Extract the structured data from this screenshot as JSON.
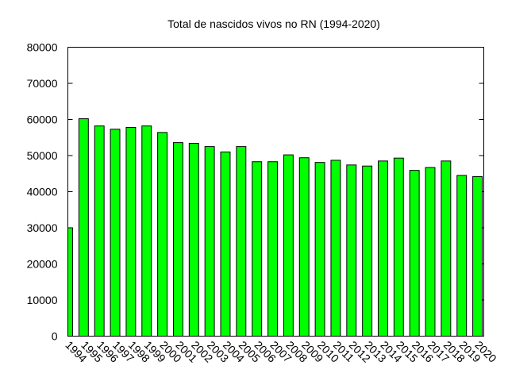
{
  "chart_data": {
    "type": "bar",
    "title": "Total de nascidos vivos no RN (1994-2020)",
    "xlabel": "",
    "ylabel": "",
    "ylim": [
      0,
      80000
    ],
    "yticks": [
      0,
      10000,
      20000,
      30000,
      40000,
      50000,
      60000,
      70000,
      80000
    ],
    "grid": false,
    "legend": "none",
    "bar_color": "#00ff00",
    "categories": [
      "1994",
      "1995",
      "1996",
      "1997",
      "1998",
      "1999",
      "2000",
      "2001",
      "2002",
      "2003",
      "2004",
      "2005",
      "2006",
      "2007",
      "2008",
      "2009",
      "2010",
      "2011",
      "2012",
      "2013",
      "2014",
      "2015",
      "2016",
      "2017",
      "2018",
      "2019",
      "2020"
    ],
    "values": [
      30000,
      60200,
      58200,
      57300,
      57800,
      58200,
      56400,
      53600,
      53400,
      52500,
      51000,
      52500,
      48300,
      48300,
      50200,
      49400,
      48100,
      48700,
      47400,
      47100,
      48500,
      49300,
      45900,
      46700,
      48500,
      44500,
      44200
    ]
  }
}
